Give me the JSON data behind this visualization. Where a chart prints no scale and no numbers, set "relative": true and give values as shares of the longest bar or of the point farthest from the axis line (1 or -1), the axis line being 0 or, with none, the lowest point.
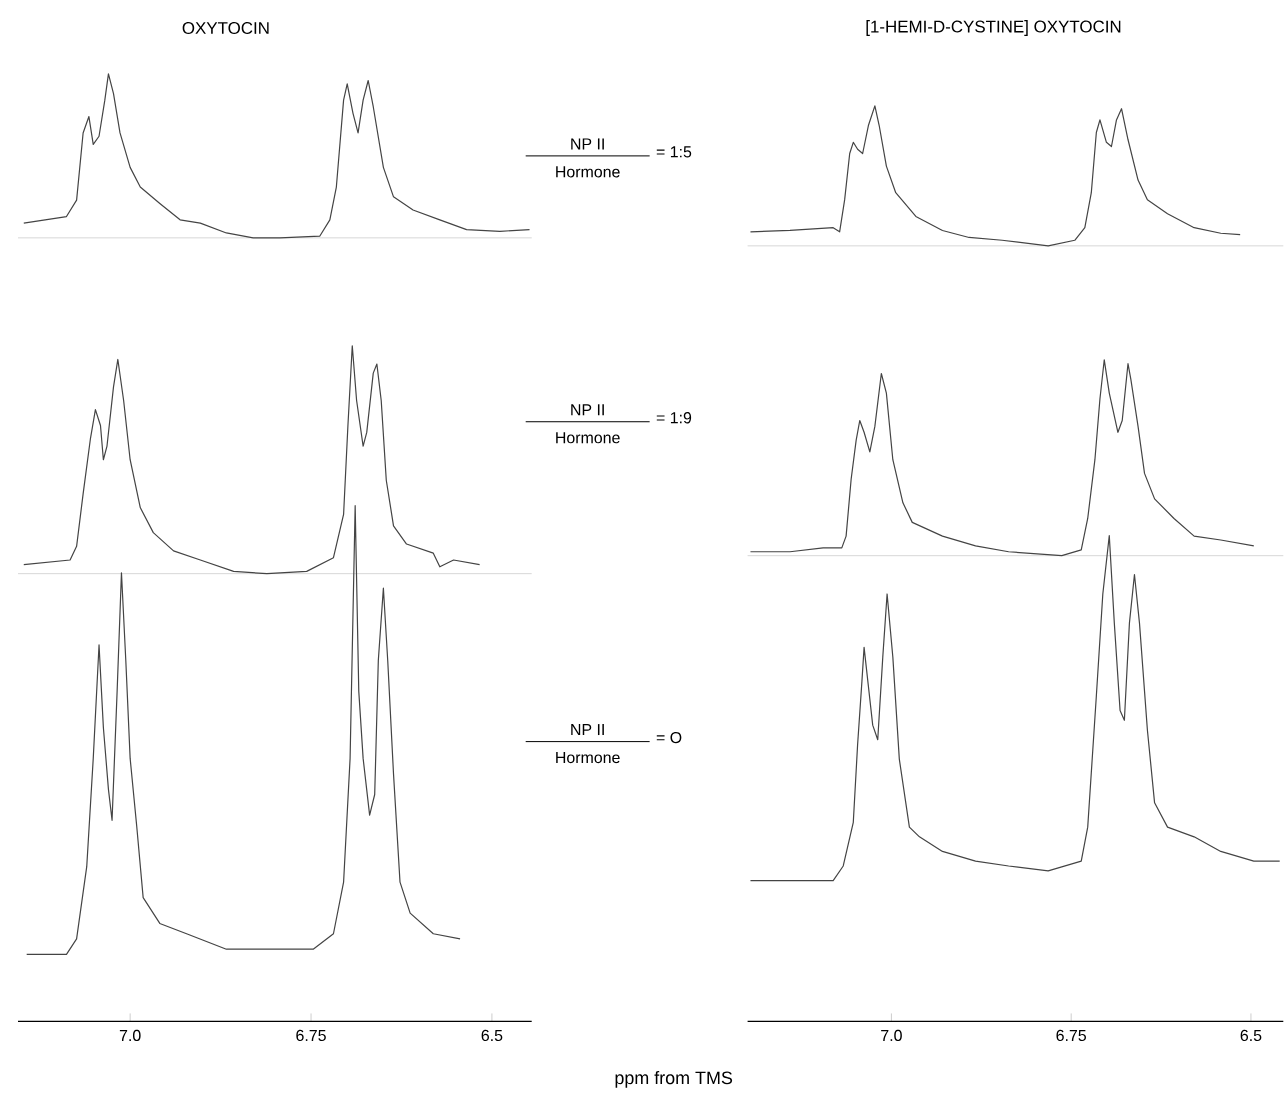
{
  "chart_data": [
    {
      "type": "line",
      "title": "OXYTOCIN",
      "color": "#444444",
      "relative": true,
      "xlim": [
        7.155,
        6.445
      ],
      "tick_labels": false,
      "annotations": [
        "NP II",
        "Hormone",
        "= 1:5"
      ],
      "x": [
        7.147,
        7.088,
        7.074,
        7.065,
        7.057,
        7.051,
        7.043,
        7.035,
        7.03,
        7.023,
        7.014,
        7.0,
        6.986,
        6.959,
        6.931,
        6.903,
        6.867,
        6.83,
        6.793,
        6.738,
        6.724,
        6.715,
        6.705,
        6.7,
        6.692,
        6.685,
        6.678,
        6.671,
        6.664,
        6.65,
        6.636,
        6.609,
        6.572,
        6.535,
        6.489,
        6.448
      ],
      "values": [
        0.09,
        0.13,
        0.23,
        0.64,
        0.74,
        0.57,
        0.62,
        0.84,
        1,
        0.88,
        0.64,
        0.43,
        0.31,
        0.21,
        0.11,
        0.09,
        0.03,
        0,
        0,
        0.01,
        0.11,
        0.31,
        0.84,
        0.94,
        0.76,
        0.64,
        0.84,
        0.96,
        0.8,
        0.43,
        0.25,
        0.17,
        0.11,
        0.05,
        0.04,
        0.05
      ]
    },
    {
      "type": "line",
      "title": "[1-HEMI-D-CYSTINE] OXYTOCIN",
      "color": "#444444",
      "relative": true,
      "xlim": [
        7.2,
        6.455
      ],
      "tick_labels": false,
      "x": [
        7.196,
        7.141,
        7.081,
        7.072,
        7.065,
        7.058,
        7.053,
        7.047,
        7.04,
        7.032,
        7.023,
        7.017,
        7.007,
        6.994,
        6.966,
        6.929,
        6.892,
        6.846,
        6.782,
        6.745,
        6.731,
        6.722,
        6.715,
        6.71,
        6.701,
        6.694,
        6.687,
        6.68,
        6.671,
        6.657,
        6.644,
        6.616,
        6.579,
        6.542,
        6.515
      ],
      "values": [
        0.1,
        0.11,
        0.13,
        0.1,
        0.33,
        0.66,
        0.74,
        0.69,
        0.66,
        0.86,
        1,
        0.86,
        0.57,
        0.38,
        0.21,
        0.11,
        0.06,
        0.04,
        0,
        0.04,
        0.13,
        0.38,
        0.81,
        0.9,
        0.74,
        0.71,
        0.9,
        0.98,
        0.76,
        0.47,
        0.33,
        0.23,
        0.13,
        0.09,
        0.08
      ]
    },
    {
      "type": "line",
      "color": "#444444",
      "relative": true,
      "xlim": [
        7.155,
        6.445
      ],
      "tick_labels": false,
      "annotations": [
        "NP II",
        "Hormone",
        "= 1:9"
      ],
      "x": [
        7.147,
        7.083,
        7.074,
        7.065,
        7.055,
        7.048,
        7.041,
        7.037,
        7.032,
        7.023,
        7.017,
        7.009,
        7.0,
        6.986,
        6.968,
        6.94,
        6.903,
        6.857,
        6.811,
        6.756,
        6.719,
        6.705,
        6.699,
        6.693,
        6.687,
        6.678,
        6.673,
        6.664,
        6.659,
        6.653,
        6.646,
        6.636,
        6.618,
        6.581,
        6.572,
        6.553,
        6.517
      ],
      "values": [
        0.04,
        0.06,
        0.12,
        0.35,
        0.59,
        0.72,
        0.65,
        0.5,
        0.56,
        0.82,
        0.94,
        0.76,
        0.5,
        0.29,
        0.18,
        0.1,
        0.06,
        0.01,
        0,
        0.01,
        0.07,
        0.26,
        0.65,
        1,
        0.76,
        0.56,
        0.62,
        0.88,
        0.92,
        0.76,
        0.41,
        0.21,
        0.13,
        0.09,
        0.03,
        0.06,
        0.04
      ]
    },
    {
      "type": "line",
      "color": "#444444",
      "relative": true,
      "xlim": [
        7.2,
        6.455
      ],
      "tick_labels": false,
      "x": [
        7.196,
        7.141,
        7.095,
        7.069,
        7.063,
        7.056,
        7.049,
        7.044,
        7.038,
        7.03,
        7.023,
        7.014,
        7.007,
        6.998,
        6.984,
        6.971,
        6.929,
        6.883,
        6.837,
        6.763,
        6.736,
        6.727,
        6.717,
        6.71,
        6.704,
        6.697,
        6.685,
        6.679,
        6.671,
        6.667,
        6.657,
        6.648,
        6.634,
        6.607,
        6.579,
        6.542,
        6.496
      ],
      "values": [
        0.02,
        0.02,
        0.04,
        0.04,
        0.1,
        0.39,
        0.59,
        0.69,
        0.63,
        0.53,
        0.66,
        0.93,
        0.83,
        0.49,
        0.27,
        0.17,
        0.1,
        0.05,
        0.02,
        0,
        0.03,
        0.19,
        0.49,
        0.8,
        1,
        0.83,
        0.63,
        0.69,
        0.98,
        0.9,
        0.66,
        0.42,
        0.29,
        0.19,
        0.1,
        0.08,
        0.05
      ]
    },
    {
      "type": "line",
      "xlabel": "ppm from TMS",
      "color": "#444444",
      "relative": true,
      "xlim": [
        7.155,
        6.445
      ],
      "xticks": [
        {
          "value": 7,
          "label": "7.0"
        },
        {
          "value": 6.75,
          "label": "6.75"
        },
        {
          "value": 6.5,
          "label": "6.5"
        }
      ],
      "tick_labels": "x",
      "annotations": [
        "NP II",
        "Hormone",
        "= O"
      ],
      "x": [
        7.143,
        7.088,
        7.074,
        7.06,
        7.051,
        7.043,
        7.037,
        7.03,
        7.025,
        7.018,
        7.012,
        7.006,
        7.0,
        6.991,
        6.982,
        6.959,
        6.922,
        6.867,
        6.811,
        6.747,
        6.719,
        6.705,
        6.696,
        6.689,
        6.684,
        6.678,
        6.669,
        6.662,
        6.657,
        6.65,
        6.644,
        6.636,
        6.627,
        6.613,
        6.581,
        6.544
      ],
      "values": [
        0.13,
        0.13,
        0.16,
        0.3,
        0.51,
        0.73,
        0.57,
        0.45,
        0.39,
        0.64,
        0.87,
        0.7,
        0.51,
        0.38,
        0.24,
        0.19,
        0.17,
        0.14,
        0.14,
        0.14,
        0.17,
        0.27,
        0.51,
        1,
        0.64,
        0.51,
        0.4,
        0.44,
        0.7,
        0.84,
        0.7,
        0.48,
        0.27,
        0.21,
        0.17,
        0.16
      ]
    },
    {
      "type": "line",
      "color": "#444444",
      "relative": true,
      "xlim": [
        7.2,
        6.455
      ],
      "xticks": [
        {
          "value": 7,
          "label": "7.0"
        },
        {
          "value": 6.75,
          "label": "6.75"
        },
        {
          "value": 6.5,
          "label": "6.5"
        }
      ],
      "tick_labels": "x",
      "x": [
        7.196,
        7.141,
        7.081,
        7.067,
        7.053,
        7.047,
        7.041,
        7.038,
        7.032,
        7.026,
        7.019,
        7.012,
        7.006,
        6.998,
        6.989,
        6.975,
        6.961,
        6.929,
        6.883,
        6.837,
        6.782,
        6.736,
        6.727,
        6.715,
        6.706,
        6.697,
        6.69,
        6.682,
        6.676,
        6.669,
        6.662,
        6.655,
        6.644,
        6.634,
        6.616,
        6.579,
        6.542,
        6.496,
        6.46
      ],
      "values": [
        0.29,
        0.29,
        0.29,
        0.32,
        0.41,
        0.57,
        0.7,
        0.77,
        0.69,
        0.61,
        0.58,
        0.75,
        0.88,
        0.75,
        0.54,
        0.4,
        0.38,
        0.35,
        0.33,
        0.32,
        0.31,
        0.33,
        0.4,
        0.67,
        0.88,
        1,
        0.82,
        0.64,
        0.62,
        0.82,
        0.92,
        0.82,
        0.6,
        0.45,
        0.4,
        0.38,
        0.35,
        0.33,
        0.33
      ]
    }
  ]
}
